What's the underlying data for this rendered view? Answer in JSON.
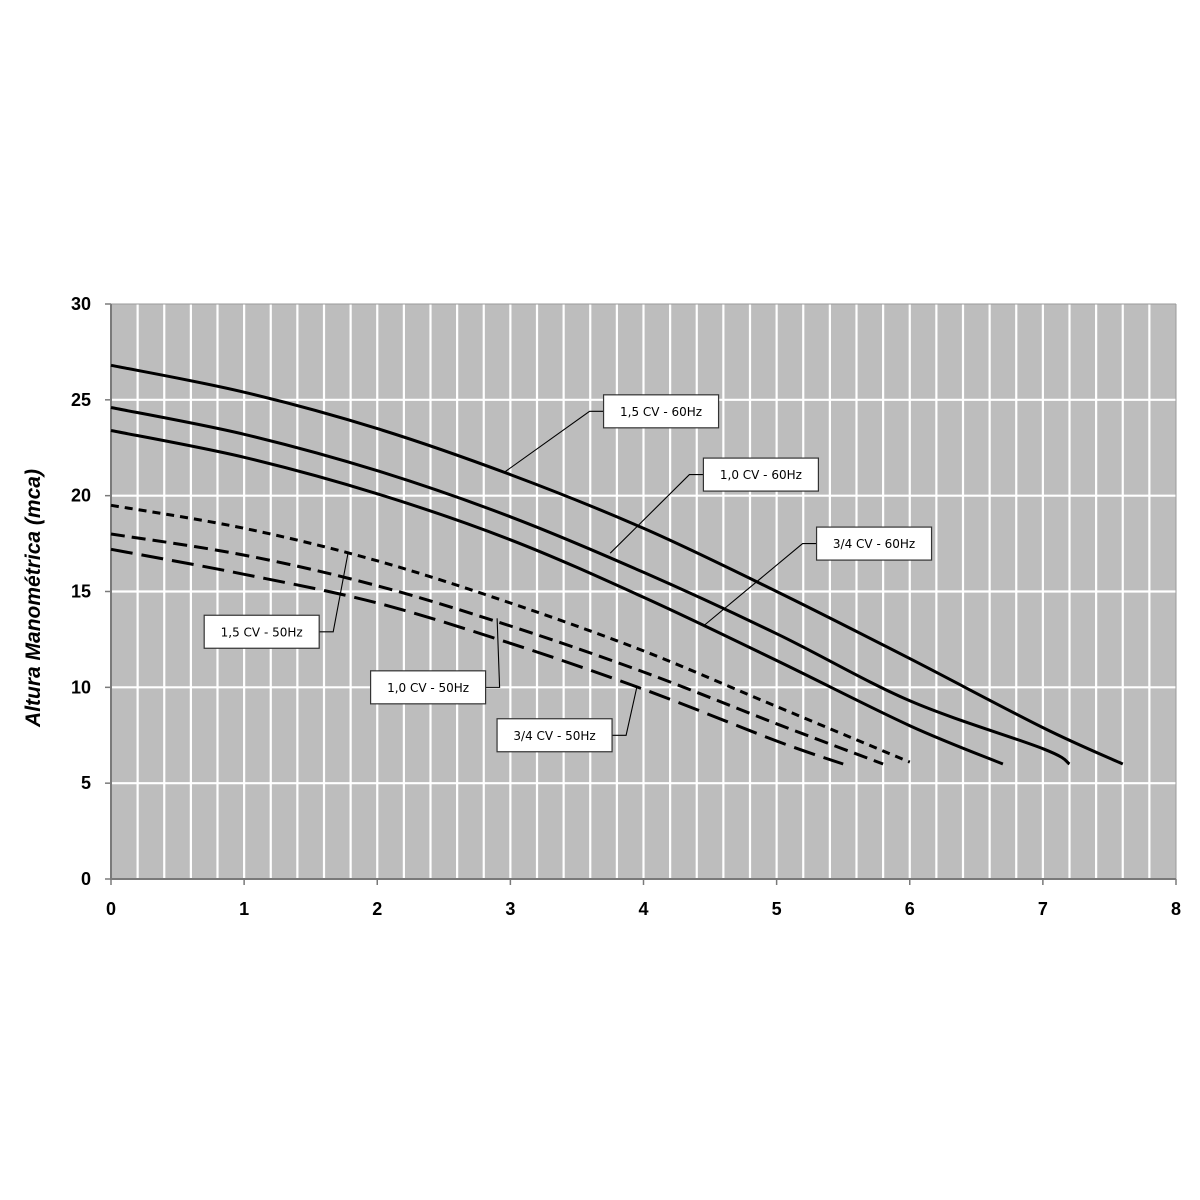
{
  "chart_data": {
    "type": "line",
    "title": "",
    "xlabel": "",
    "ylabel": "Altura Manométrica (mca)",
    "xlim": [
      0,
      8
    ],
    "ylim": [
      0,
      30
    ],
    "x_ticks": [
      "0",
      "1",
      "2",
      "3",
      "4",
      "5",
      "6",
      "7",
      "8"
    ],
    "y_ticks": [
      "0",
      "5",
      "10",
      "15",
      "20",
      "25",
      "30"
    ],
    "grid": true,
    "x_minor_step": 0.2,
    "y_major_step": 5,
    "plot_background": "#bdbdbd",
    "grid_color": "#ffffff",
    "line_color": "#000000",
    "series": [
      {
        "name": "1,5 CV - 60Hz",
        "style": "solid",
        "x": [
          0,
          1,
          2,
          3,
          4,
          5,
          6,
          7,
          7.6
        ],
        "y": [
          26.8,
          25.4,
          23.5,
          21.1,
          18.3,
          15.0,
          11.5,
          7.9,
          6.0
        ]
      },
      {
        "name": "1,0 CV - 60Hz",
        "style": "solid",
        "x": [
          0,
          1,
          2,
          3,
          4,
          5,
          6,
          7,
          7.2
        ],
        "y": [
          24.6,
          23.2,
          21.3,
          18.9,
          16.0,
          12.8,
          9.3,
          6.8,
          6.0
        ]
      },
      {
        "name": "3/4 CV - 60Hz",
        "style": "solid",
        "x": [
          0,
          1,
          2,
          3,
          4,
          5,
          6,
          6.7
        ],
        "y": [
          23.4,
          22.0,
          20.1,
          17.7,
          14.7,
          11.4,
          8.0,
          6.0
        ]
      },
      {
        "name": "1,5 CV - 50Hz",
        "style": "short-dash",
        "x": [
          0,
          1,
          2,
          3,
          4,
          5,
          6
        ],
        "y": [
          19.5,
          18.3,
          16.6,
          14.4,
          11.9,
          9.0,
          6.1
        ]
      },
      {
        "name": "1,0 CV - 50Hz",
        "style": "medium-dash",
        "x": [
          0,
          1,
          2,
          3,
          4,
          5,
          5.8
        ],
        "y": [
          18.0,
          16.9,
          15.3,
          13.2,
          10.8,
          8.1,
          6.0
        ]
      },
      {
        "name": "3/4 CV - 50Hz",
        "style": "long-dash",
        "x": [
          0,
          1,
          2,
          3,
          4,
          5,
          5.5
        ],
        "y": [
          17.2,
          15.9,
          14.4,
          12.3,
          9.9,
          7.2,
          6.0
        ]
      }
    ],
    "annotations": [
      {
        "label": "1,5 CV - 60Hz",
        "target": [
          2.95,
          21.2
        ],
        "box_at": [
          3.7,
          24.4
        ]
      },
      {
        "label": "1,0 CV - 60Hz",
        "target": [
          3.75,
          17.0
        ],
        "box_at": [
          4.45,
          21.1
        ]
      },
      {
        "label": "3/4 CV - 60Hz",
        "target": [
          4.45,
          13.2
        ],
        "box_at": [
          5.3,
          17.5
        ]
      },
      {
        "label": "1,5 CV - 50Hz",
        "target": [
          1.78,
          17.0
        ],
        "box_at": [
          0.7,
          12.9
        ]
      },
      {
        "label": "1,0 CV - 50Hz",
        "target": [
          2.9,
          13.6
        ],
        "box_at": [
          1.95,
          10.0
        ]
      },
      {
        "label": "3/4 CV - 50Hz",
        "target": [
          3.95,
          10.0
        ],
        "box_at": [
          2.9,
          7.5
        ]
      }
    ]
  }
}
